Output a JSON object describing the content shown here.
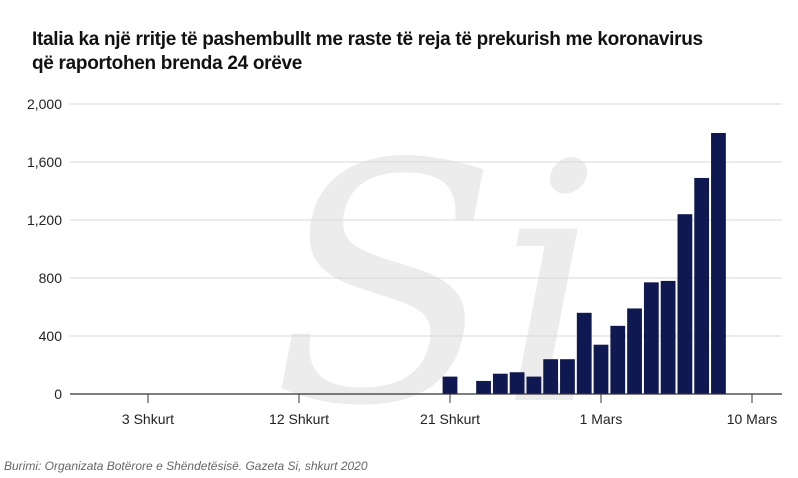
{
  "title_lines": [
    "Italia ka një rritje të pashembullt me raste të reja të prekurish me koronavirus",
    "që raportohen brenda 24 orëve"
  ],
  "source": "Burimi: Organizata Botërore e Shëndetësisë. Gazeta Si, shkurt 2020",
  "watermark": "Si",
  "colors": {
    "bar": "#0f1850",
    "grid": "#d9d9d9",
    "axis": "#333333",
    "watermark": "#ececec"
  },
  "chart_data": {
    "type": "bar",
    "title": "Italia ka një rritje të pashembullt me raste të reja të prekurish me koronavirus që raportohen brenda 24 orëve",
    "xlabel": "",
    "ylabel": "",
    "ylim": [
      0,
      2000
    ],
    "yticks": [
      0,
      400,
      800,
      1200,
      1600,
      2000
    ],
    "ytick_labels": [
      "0",
      "400",
      "800",
      "1,200",
      "1,600",
      "2,000"
    ],
    "xlim_days": [
      "2020-01-31",
      "2020-03-11"
    ],
    "x_tick_labels": [
      {
        "date": "2020-02-03",
        "label": "3 Shkurt"
      },
      {
        "date": "2020-02-12",
        "label": "12 Shkurt"
      },
      {
        "date": "2020-02-21",
        "label": "21 Shkurt"
      },
      {
        "date": "2020-03-01",
        "label": "1 Mars"
      },
      {
        "date": "2020-03-10",
        "label": "10 Mars"
      }
    ],
    "grid": true,
    "series": [
      {
        "x": [
          "2020-02-21",
          "2020-02-22",
          "2020-02-23",
          "2020-02-24",
          "2020-02-25",
          "2020-02-26",
          "2020-02-27",
          "2020-02-28",
          "2020-02-29",
          "2020-03-01",
          "2020-03-02",
          "2020-03-03",
          "2020-03-04",
          "2020-03-05",
          "2020-03-06",
          "2020-03-07",
          "2020-03-08",
          "2020-03-09",
          "2020-03-10",
          "2020-03-11"
        ],
        "values": [
          120,
          0,
          90,
          140,
          150,
          120,
          240,
          240,
          560,
          340,
          470,
          590,
          770,
          780,
          1240,
          1490,
          1800,
          null,
          null,
          null
        ]
      }
    ]
  }
}
